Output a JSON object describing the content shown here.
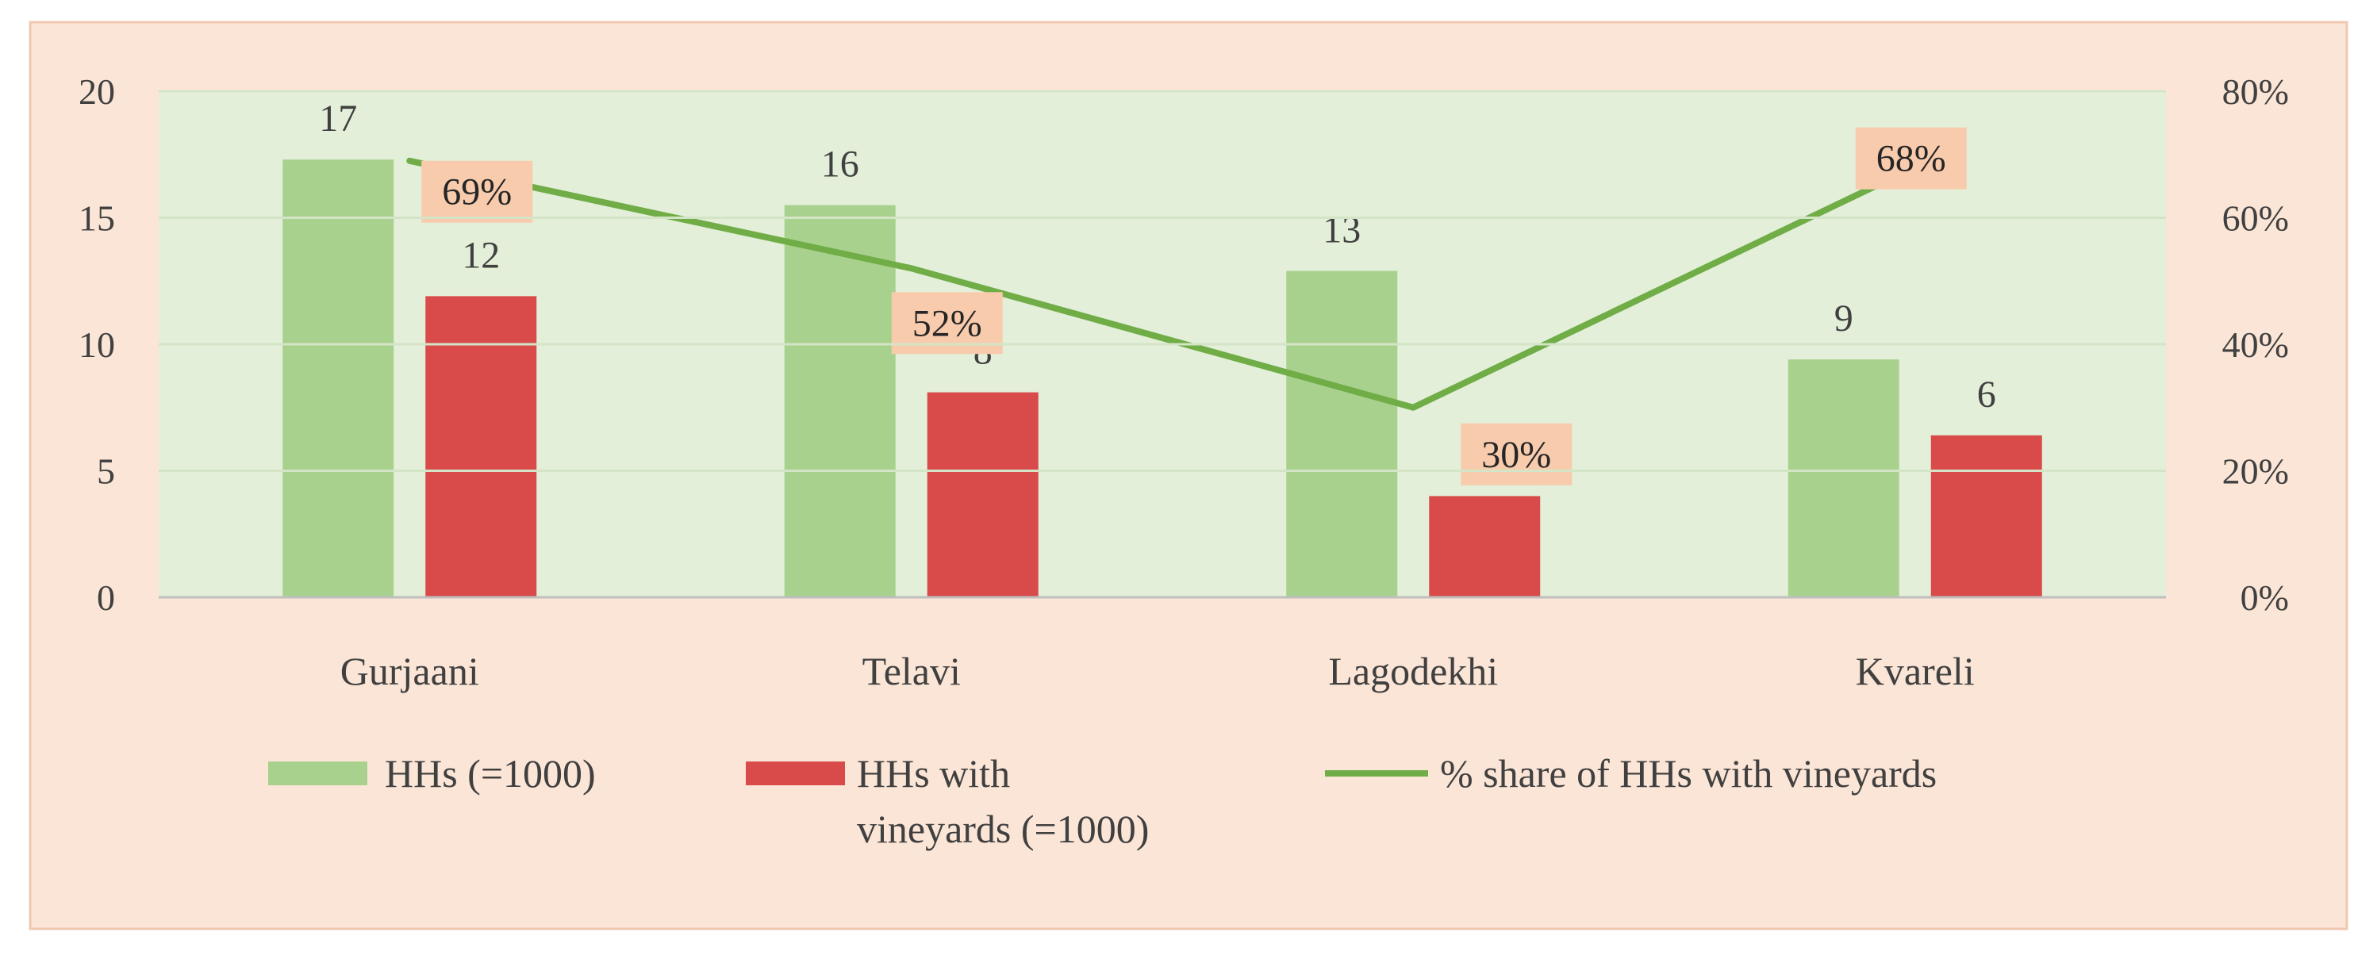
{
  "chart_data": {
    "type": "bar",
    "categories": [
      "Gurjaani",
      "Telavi",
      "Lagodekhi",
      "Kvareli"
    ],
    "series": [
      {
        "name": "HHs (=1000)",
        "type": "bar",
        "axis": "left",
        "color": "#a9d18e",
        "values": [
          17.3,
          15.5,
          12.9,
          9.4
        ],
        "labels": [
          "17",
          "16",
          "13",
          "9"
        ]
      },
      {
        "name": "HHs with vineyards (=1000)",
        "type": "bar",
        "axis": "left",
        "color": "#d94a4a",
        "values": [
          11.9,
          8.1,
          4.0,
          6.4
        ],
        "labels": [
          "12",
          "8",
          "4",
          "6"
        ]
      },
      {
        "name": "% share of HHs with vineyards",
        "type": "line",
        "axis": "right",
        "color": "#70ad47",
        "values": [
          69,
          52,
          30,
          68
        ],
        "labels": [
          "69%",
          "52%",
          "30%",
          "68%"
        ]
      }
    ],
    "y_left": {
      "ylim": [
        0,
        20
      ],
      "ticks": [
        0,
        5,
        10,
        15,
        20
      ],
      "tick_labels": [
        "0",
        "5",
        "10",
        "15",
        "20"
      ]
    },
    "y_right": {
      "ylim": [
        0,
        80
      ],
      "ticks": [
        0,
        20,
        40,
        60,
        80
      ],
      "tick_labels": [
        "0%",
        "20%",
        "40%",
        "60%",
        "80%"
      ]
    },
    "legend_position": "bottom",
    "colors": {
      "frame_bg": "#fbe5d6",
      "plot_bg": "#e3efd9",
      "pct_label_bg": "#f8cbad"
    }
  }
}
